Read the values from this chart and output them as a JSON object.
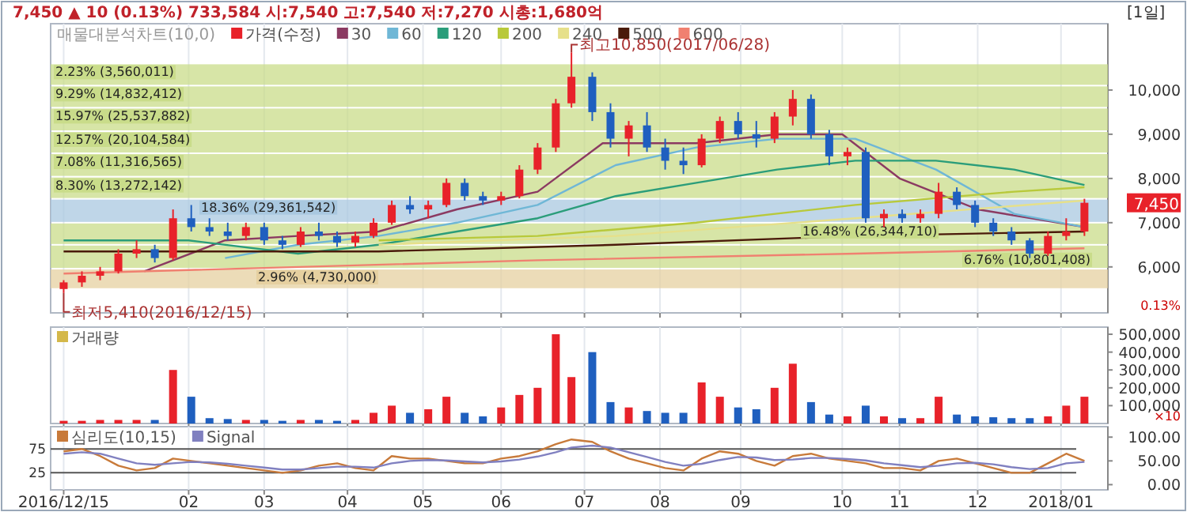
{
  "chart_data": [
    {
      "type": "candlestick",
      "title": "7,450 ▲ 10 (0.13%)   733,584   시:7,540  고:7,540  저:7,270  시총:1,680억",
      "subtitle": "[1일]",
      "legend_title": "매물대분석차트(10,0)",
      "legend": "top left",
      "grid": "x",
      "tick_labels": "y",
      "xlim": [
        "2016-12-10",
        "2018-01-20"
      ],
      "ylim": [
        4960,
        11500
      ],
      "xticks": [
        {
          "value": "2016-12-15",
          "label": null
        },
        {
          "value": "2017-02-01",
          "label": null
        },
        {
          "value": "2017-03-02",
          "label": null
        },
        {
          "value": "2017-04-03",
          "label": null
        },
        {
          "value": "2017-05-02",
          "label": null
        },
        {
          "value": "2017-06-01",
          "label": null
        },
        {
          "value": "2017-07-03",
          "label": null
        },
        {
          "value": "2017-08-01",
          "label": null
        },
        {
          "value": "2017-09-01",
          "label": null
        },
        {
          "value": "2017-10-10",
          "label": null
        },
        {
          "value": "2017-11-01",
          "label": null
        },
        {
          "value": "2017-12-01",
          "label": null
        },
        {
          "value": "2018-01-02",
          "label": null
        }
      ],
      "yticks": [
        {
          "value": 6000,
          "label": "6,000"
        },
        {
          "value": 7000,
          "label": "7,000"
        },
        {
          "value": 8000,
          "label": "8,000"
        },
        {
          "value": 9000,
          "label": "9,000"
        },
        {
          "value": 10000,
          "label": "10,000"
        }
      ],
      "bands": [
        {
          "axis": "y",
          "from": 10100,
          "to": 10600,
          "label": "2.23% (3,560,011)",
          "color": "#c9dc8a"
        },
        {
          "axis": "y",
          "from": 9600,
          "to": 10100,
          "label": "9.29% (14,832,412)",
          "color": "#c9dc8a"
        },
        {
          "axis": "y",
          "from": 9070,
          "to": 9600,
          "label": "15.97% (25,537,882)",
          "color": "#c9dc8a"
        },
        {
          "axis": "y",
          "from": 8570,
          "to": 9070,
          "label": "12.57% (20,104,584)",
          "color": "#c9dc8a"
        },
        {
          "axis": "y",
          "from": 8040,
          "to": 8570,
          "label": "7.08% (11,316,565)",
          "color": "#c9dc8a"
        },
        {
          "axis": "y",
          "from": 7540,
          "to": 8040,
          "label": "8.30% (13,272,142)",
          "color": "#c9dc8a"
        },
        {
          "axis": "y",
          "from": 7000,
          "to": 7540,
          "label": "18.36% (29,361,542)",
          "color": "#a9c8e0"
        },
        {
          "axis": "y",
          "from": 6500,
          "to": 7000,
          "label": "16.48% (26,344,710)",
          "color": "#c9dc8a"
        },
        {
          "axis": "y",
          "from": 5960,
          "to": 6500,
          "label": "6.76% (10,801,408)",
          "color": "#c9dc8a"
        },
        {
          "axis": "y",
          "from": 5500,
          "to": 5960,
          "label": "2.96% (4,730,000)",
          "color": "#e6d0a0"
        }
      ],
      "annotations": [
        {
          "text": "최고10,850(2017/06/28)",
          "x": "2017-06-28",
          "y": 10850
        },
        {
          "text": "최저5,410(2016/12/15)",
          "x": "2016-12-15",
          "y": 5410
        },
        "7,450",
        "0.13%"
      ],
      "series": [
        {
          "type": "candlestick",
          "name": "가격(수정)",
          "color": "#e8222a",
          "colors": [
            "#e8222a",
            "#e8222a",
            "#e8222a",
            "#e8222a",
            "#e8222a",
            "#1f5fbf",
            "#e8222a",
            "#1f5fbf",
            "#1f5fbf",
            "#1f5fbf",
            "#e8222a",
            "#1f5fbf",
            "#1f5fbf",
            "#e8222a",
            "#1f5fbf",
            "#1f5fbf",
            "#e8222a",
            "#e8222a",
            "#e8222a",
            "#1f5fbf",
            "#e8222a",
            "#e8222a",
            "#1f5fbf",
            "#1f5fbf",
            "#e8222a",
            "#e8222a",
            "#e8222a",
            "#e8222a",
            "#e8222a",
            "#1f5fbf",
            "#1f5fbf",
            "#e8222a",
            "#1f5fbf",
            "#1f5fbf",
            "#1f5fbf",
            "#e8222a",
            "#e8222a",
            "#1f5fbf",
            "#1f5fbf",
            "#e8222a",
            "#e8222a",
            "#1f5fbf",
            "#1f5fbf",
            "#e8222a",
            "#1f5fbf",
            "#e8222a",
            "#1f5fbf",
            "#e8222a",
            "#e8222a",
            "#1f5fbf",
            "#1f5fbf",
            "#1f5fbf",
            "#1f5fbf",
            "#1f5fbf",
            "#e8222a",
            "#e8222a",
            "#e8222a"
          ],
          "x": [
            "2016-12-15",
            "2016-12-22",
            "2016-12-29",
            "2017-01-05",
            "2017-01-12",
            "2017-01-19",
            "2017-01-26",
            "2017-02-02",
            "2017-02-09",
            "2017-02-16",
            "2017-02-23",
            "2017-03-02",
            "2017-03-09",
            "2017-03-16",
            "2017-03-23",
            "2017-03-30",
            "2017-04-06",
            "2017-04-13",
            "2017-04-20",
            "2017-04-27",
            "2017-05-04",
            "2017-05-11",
            "2017-05-18",
            "2017-05-25",
            "2017-06-01",
            "2017-06-08",
            "2017-06-15",
            "2017-06-22",
            "2017-06-28",
            "2017-07-06",
            "2017-07-13",
            "2017-07-20",
            "2017-07-27",
            "2017-08-03",
            "2017-08-10",
            "2017-08-17",
            "2017-08-24",
            "2017-08-31",
            "2017-09-07",
            "2017-09-14",
            "2017-09-21",
            "2017-09-28",
            "2017-10-05",
            "2017-10-12",
            "2017-10-19",
            "2017-10-26",
            "2017-11-02",
            "2017-11-09",
            "2017-11-16",
            "2017-11-23",
            "2017-11-30",
            "2017-12-07",
            "2017-12-14",
            "2017-12-21",
            "2017-12-28",
            "2018-01-04",
            "2018-01-11"
          ],
          "ohlc": [
            [
              5500,
              5700,
              5410,
              5650
            ],
            [
              5650,
              5900,
              5550,
              5800
            ],
            [
              5800,
              6000,
              5700,
              5900
            ],
            [
              5900,
              6400,
              5850,
              6300
            ],
            [
              6300,
              6600,
              6200,
              6400
            ],
            [
              6400,
              6500,
              6100,
              6200
            ],
            [
              6200,
              7300,
              6150,
              7100
            ],
            [
              7100,
              7400,
              6800,
              6900
            ],
            [
              6900,
              7100,
              6700,
              6800
            ],
            [
              6800,
              7000,
              6600,
              6700
            ],
            [
              6700,
              7000,
              6600,
              6900
            ],
            [
              6900,
              7000,
              6500,
              6600
            ],
            [
              6600,
              6700,
              6400,
              6500
            ],
            [
              6500,
              6900,
              6450,
              6800
            ],
            [
              6800,
              7000,
              6600,
              6700
            ],
            [
              6700,
              6800,
              6450,
              6550
            ],
            [
              6550,
              6800,
              6450,
              6700
            ],
            [
              6700,
              7100,
              6650,
              7000
            ],
            [
              7000,
              7500,
              6950,
              7400
            ],
            [
              7400,
              7600,
              7200,
              7300
            ],
            [
              7300,
              7500,
              7100,
              7400
            ],
            [
              7400,
              8000,
              7350,
              7900
            ],
            [
              7900,
              8000,
              7500,
              7600
            ],
            [
              7600,
              7700,
              7400,
              7500
            ],
            [
              7500,
              7700,
              7400,
              7600
            ],
            [
              7600,
              8300,
              7550,
              8200
            ],
            [
              8200,
              8800,
              8100,
              8700
            ],
            [
              8700,
              9800,
              8600,
              9700
            ],
            [
              9700,
              10850,
              9600,
              10300
            ],
            [
              10300,
              10400,
              9300,
              9500
            ],
            [
              9500,
              9700,
              8700,
              8900
            ],
            [
              8900,
              9300,
              8500,
              9200
            ],
            [
              9200,
              9500,
              8600,
              8700
            ],
            [
              8700,
              8900,
              8200,
              8400
            ],
            [
              8400,
              8700,
              8100,
              8300
            ],
            [
              8300,
              9000,
              8250,
              8900
            ],
            [
              8900,
              9400,
              8800,
              9300
            ],
            [
              9300,
              9500,
              8900,
              9000
            ],
            [
              9000,
              9300,
              8700,
              8900
            ],
            [
              8900,
              9500,
              8800,
              9400
            ],
            [
              9400,
              10000,
              9200,
              9800
            ],
            [
              9800,
              9900,
              8900,
              9000
            ],
            [
              9000,
              9100,
              8300,
              8500
            ],
            [
              8500,
              8700,
              8300,
              8600
            ],
            [
              8600,
              8700,
              7000,
              7100
            ],
            [
              7100,
              7300,
              6900,
              7200
            ],
            [
              7200,
              7300,
              7000,
              7100
            ],
            [
              7100,
              7300,
              7000,
              7200
            ],
            [
              7200,
              7900,
              7100,
              7700
            ],
            [
              7700,
              7800,
              7300,
              7400
            ],
            [
              7400,
              7500,
              6900,
              7000
            ],
            [
              7000,
              7100,
              6700,
              6800
            ],
            [
              6800,
              6900,
              6500,
              6600
            ],
            [
              6600,
              6650,
              6200,
              6300
            ],
            [
              6300,
              6800,
              6250,
              6700
            ],
            [
              6700,
              7100,
              6600,
              6800
            ],
            [
              6800,
              7540,
              6700,
              7450
            ]
          ]
        },
        {
          "type": "line",
          "name": "30",
          "color": "#8b3a62",
          "x": [
            "2017-01-15",
            "2017-02-15",
            "2017-03-15",
            "2017-04-15",
            "2017-05-15",
            "2017-06-15",
            "2017-07-10",
            "2017-08-15",
            "2017-09-15",
            "2017-10-10",
            "2017-11-01",
            "2017-12-01",
            "2018-01-11"
          ],
          "values": [
            5900,
            6600,
            6700,
            6800,
            7300,
            7700,
            8800,
            8800,
            9000,
            9000,
            8000,
            7300,
            6900
          ]
        },
        {
          "type": "line",
          "name": "60",
          "color": "#6fb7d6",
          "x": [
            "2017-02-15",
            "2017-03-15",
            "2017-04-15",
            "2017-05-15",
            "2017-06-15",
            "2017-07-15",
            "2017-08-15",
            "2017-09-15",
            "2017-10-15",
            "2017-11-15",
            "2017-12-15",
            "2018-01-11"
          ],
          "values": [
            6200,
            6500,
            6700,
            7000,
            7400,
            8300,
            8700,
            8900,
            8900,
            8200,
            7200,
            6900
          ]
        },
        {
          "type": "line",
          "name": "120",
          "color": "#2a9d7a",
          "x": [
            "2016-12-15",
            "2017-02-01",
            "2017-03-15",
            "2017-04-15",
            "2017-05-15",
            "2017-06-15",
            "2017-07-15",
            "2017-08-15",
            "2017-09-15",
            "2017-10-15",
            "2017-11-15",
            "2017-12-15",
            "2018-01-11"
          ],
          "values": [
            6600,
            6600,
            6300,
            6500,
            6800,
            7100,
            7600,
            7900,
            8200,
            8400,
            8400,
            8200,
            7850
          ]
        },
        {
          "type": "line",
          "name": "200",
          "color": "#b8c93a",
          "x": [
            "2017-04-15",
            "2017-06-15",
            "2017-08-15",
            "2017-10-15",
            "2017-12-15",
            "2018-01-11"
          ],
          "values": [
            6600,
            6700,
            7000,
            7400,
            7700,
            7800
          ]
        },
        {
          "type": "line",
          "name": "240",
          "color": "#e6e08a",
          "x": [
            "2017-04-15",
            "2017-07-15",
            "2017-10-15",
            "2018-01-11"
          ],
          "values": [
            6500,
            6700,
            7100,
            7500
          ]
        },
        {
          "type": "line",
          "name": "500",
          "color": "#4a1a0a",
          "x": [
            "2016-12-15",
            "2017-04-15",
            "2017-07-15",
            "2017-10-15",
            "2018-01-11"
          ],
          "values": [
            6350,
            6350,
            6500,
            6700,
            6800
          ]
        },
        {
          "type": "line",
          "name": "600",
          "color": "#f08070",
          "x": [
            "2016-12-15",
            "2017-06-15",
            "2017-10-15",
            "2018-01-11"
          ],
          "values": [
            5850,
            6150,
            6300,
            6420
          ]
        }
      ]
    },
    {
      "type": "bar",
      "legend": "top left",
      "grid": "x",
      "tick_labels": "y",
      "xlim": [
        "2016-12-10",
        "2018-01-20"
      ],
      "ylim": [
        0,
        540000
      ],
      "xticks": [
        {
          "value": "2016-12-15",
          "label": null
        },
        {
          "value": "2017-02-01",
          "label": null
        },
        {
          "value": "2017-03-02",
          "label": null
        },
        {
          "value": "2017-04-03",
          "label": null
        },
        {
          "value": "2017-05-02",
          "label": null
        },
        {
          "value": "2017-06-01",
          "label": null
        },
        {
          "value": "2017-07-03",
          "label": null
        },
        {
          "value": "2017-08-01",
          "label": null
        },
        {
          "value": "2017-09-01",
          "label": null
        },
        {
          "value": "2017-10-10",
          "label": null
        },
        {
          "value": "2017-11-01",
          "label": null
        },
        {
          "value": "2017-12-01",
          "label": null
        },
        {
          "value": "2018-01-02",
          "label": null
        }
      ],
      "yticks": [
        {
          "value": 100000,
          "label": "100,000"
        },
        {
          "value": 200000,
          "label": "200,000"
        },
        {
          "value": 300000,
          "label": "300,000"
        },
        {
          "value": 400000,
          "label": "400,000"
        },
        {
          "value": 500000,
          "label": "500,000"
        }
      ],
      "annotations": [
        "×10"
      ],
      "x": [
        "2016-12-15",
        "2016-12-22",
        "2016-12-29",
        "2017-01-05",
        "2017-01-12",
        "2017-01-19",
        "2017-01-26",
        "2017-02-02",
        "2017-02-09",
        "2017-02-16",
        "2017-02-23",
        "2017-03-02",
        "2017-03-09",
        "2017-03-16",
        "2017-03-23",
        "2017-03-30",
        "2017-04-06",
        "2017-04-13",
        "2017-04-20",
        "2017-04-27",
        "2017-05-04",
        "2017-05-11",
        "2017-05-18",
        "2017-05-25",
        "2017-06-01",
        "2017-06-08",
        "2017-06-15",
        "2017-06-22",
        "2017-06-28",
        "2017-07-06",
        "2017-07-13",
        "2017-07-20",
        "2017-07-27",
        "2017-08-03",
        "2017-08-10",
        "2017-08-17",
        "2017-08-24",
        "2017-08-31",
        "2017-09-07",
        "2017-09-14",
        "2017-09-21",
        "2017-09-28",
        "2017-10-05",
        "2017-10-12",
        "2017-10-19",
        "2017-10-26",
        "2017-11-02",
        "2017-11-09",
        "2017-11-16",
        "2017-11-23",
        "2017-11-30",
        "2017-12-07",
        "2017-12-14",
        "2017-12-21",
        "2017-12-28",
        "2018-01-04",
        "2018-01-11"
      ],
      "series": [
        {
          "name": "거래량",
          "color": "#d4b84a",
          "values": [
            15000,
            15000,
            20000,
            20000,
            20000,
            20000,
            300000,
            150000,
            30000,
            25000,
            20000,
            20000,
            15000,
            20000,
            20000,
            15000,
            20000,
            60000,
            100000,
            60000,
            80000,
            150000,
            60000,
            40000,
            90000,
            160000,
            200000,
            500000,
            260000,
            400000,
            120000,
            90000,
            70000,
            60000,
            60000,
            230000,
            150000,
            90000,
            80000,
            200000,
            335000,
            120000,
            50000,
            40000,
            100000,
            40000,
            30000,
            30000,
            150000,
            50000,
            40000,
            35000,
            30000,
            30000,
            40000,
            100000,
            150000
          ],
          "colors": [
            "#e8222a",
            "#e8222a",
            "#e8222a",
            "#e8222a",
            "#e8222a",
            "#1f5fbf",
            "#e8222a",
            "#1f5fbf",
            "#1f5fbf",
            "#1f5fbf",
            "#e8222a",
            "#1f5fbf",
            "#1f5fbf",
            "#e8222a",
            "#1f5fbf",
            "#1f5fbf",
            "#e8222a",
            "#e8222a",
            "#e8222a",
            "#1f5fbf",
            "#e8222a",
            "#e8222a",
            "#1f5fbf",
            "#1f5fbf",
            "#e8222a",
            "#e8222a",
            "#e8222a",
            "#e8222a",
            "#e8222a",
            "#1f5fbf",
            "#1f5fbf",
            "#e8222a",
            "#1f5fbf",
            "#1f5fbf",
            "#1f5fbf",
            "#e8222a",
            "#e8222a",
            "#1f5fbf",
            "#1f5fbf",
            "#e8222a",
            "#e8222a",
            "#1f5fbf",
            "#1f5fbf",
            "#e8222a",
            "#1f5fbf",
            "#e8222a",
            "#1f5fbf",
            "#e8222a",
            "#e8222a",
            "#1f5fbf",
            "#1f5fbf",
            "#1f5fbf",
            "#1f5fbf",
            "#1f5fbf",
            "#e8222a",
            "#e8222a",
            "#e8222a"
          ]
        }
      ]
    },
    {
      "type": "line",
      "legend": "top left",
      "grid": "x",
      "xlim": [
        "2016-12-10",
        "2018-01-20"
      ],
      "ylim": [
        -11,
        122
      ],
      "xticks": [
        {
          "value": "2016-12-15",
          "label": "2016/12/15"
        },
        {
          "value": "2017-02-01",
          "label": "02"
        },
        {
          "value": "2017-03-02",
          "label": "03"
        },
        {
          "value": "2017-04-03",
          "label": "04"
        },
        {
          "value": "2017-05-02",
          "label": "05"
        },
        {
          "value": "2017-06-01",
          "label": "06"
        },
        {
          "value": "2017-07-03",
          "label": "07"
        },
        {
          "value": "2017-08-01",
          "label": "08"
        },
        {
          "value": "2017-09-01",
          "label": "09"
        },
        {
          "value": "2017-10-10",
          "label": "10"
        },
        {
          "value": "2017-11-01",
          "label": "11"
        },
        {
          "value": "2017-12-01",
          "label": "12"
        },
        {
          "value": "2018-01-02",
          "label": "2018/01"
        }
      ],
      "yticks": [
        {
          "value": 0,
          "label": "0.00"
        },
        {
          "value": 50,
          "label": "50.00"
        },
        {
          "value": 100,
          "label": "100.00"
        }
      ],
      "ref_lines": [
        {
          "axis": "y",
          "value": 75,
          "label": "75",
          "color": "#555555"
        },
        {
          "axis": "y",
          "value": 25,
          "label": "25",
          "color": "#555555"
        }
      ],
      "x": [
        "2016-12-15",
        "2016-12-22",
        "2016-12-29",
        "2017-01-05",
        "2017-01-12",
        "2017-01-19",
        "2017-01-26",
        "2017-02-02",
        "2017-02-09",
        "2017-02-16",
        "2017-02-23",
        "2017-03-02",
        "2017-03-09",
        "2017-03-16",
        "2017-03-23",
        "2017-03-30",
        "2017-04-06",
        "2017-04-13",
        "2017-04-20",
        "2017-04-27",
        "2017-05-04",
        "2017-05-11",
        "2017-05-18",
        "2017-05-25",
        "2017-06-01",
        "2017-06-08",
        "2017-06-15",
        "2017-06-22",
        "2017-06-28",
        "2017-07-06",
        "2017-07-13",
        "2017-07-20",
        "2017-07-27",
        "2017-08-03",
        "2017-08-10",
        "2017-08-17",
        "2017-08-24",
        "2017-08-31",
        "2017-09-07",
        "2017-09-14",
        "2017-09-21",
        "2017-09-28",
        "2017-10-05",
        "2017-10-12",
        "2017-10-19",
        "2017-10-26",
        "2017-11-02",
        "2017-11-09",
        "2017-11-16",
        "2017-11-23",
        "2017-11-30",
        "2017-12-07",
        "2017-12-14",
        "2017-12-21",
        "2017-12-28",
        "2018-01-04",
        "2018-01-11"
      ],
      "series": [
        {
          "name": "심리도(10,15)",
          "color": "#c87a3a",
          "values": [
            70,
            75,
            60,
            40,
            30,
            35,
            55,
            50,
            45,
            40,
            35,
            30,
            25,
            30,
            40,
            45,
            35,
            30,
            60,
            55,
            55,
            50,
            45,
            45,
            55,
            60,
            70,
            85,
            95,
            90,
            70,
            55,
            45,
            35,
            30,
            55,
            70,
            65,
            50,
            40,
            60,
            65,
            55,
            50,
            45,
            35,
            35,
            30,
            50,
            55,
            45,
            35,
            25,
            25,
            45,
            65,
            50
          ]
        },
        {
          "name": "Signal",
          "color": "#8080c0",
          "values": [
            65,
            68,
            65,
            55,
            45,
            42,
            45,
            48,
            47,
            44,
            40,
            36,
            32,
            32,
            35,
            38,
            38,
            36,
            45,
            50,
            52,
            51,
            49,
            47,
            49,
            53,
            59,
            68,
            78,
            82,
            78,
            68,
            58,
            48,
            40,
            44,
            52,
            58,
            57,
            52,
            53,
            56,
            56,
            54,
            51,
            45,
            41,
            37,
            40,
            45,
            46,
            43,
            37,
            33,
            35,
            45,
            48
          ]
        }
      ]
    }
  ]
}
